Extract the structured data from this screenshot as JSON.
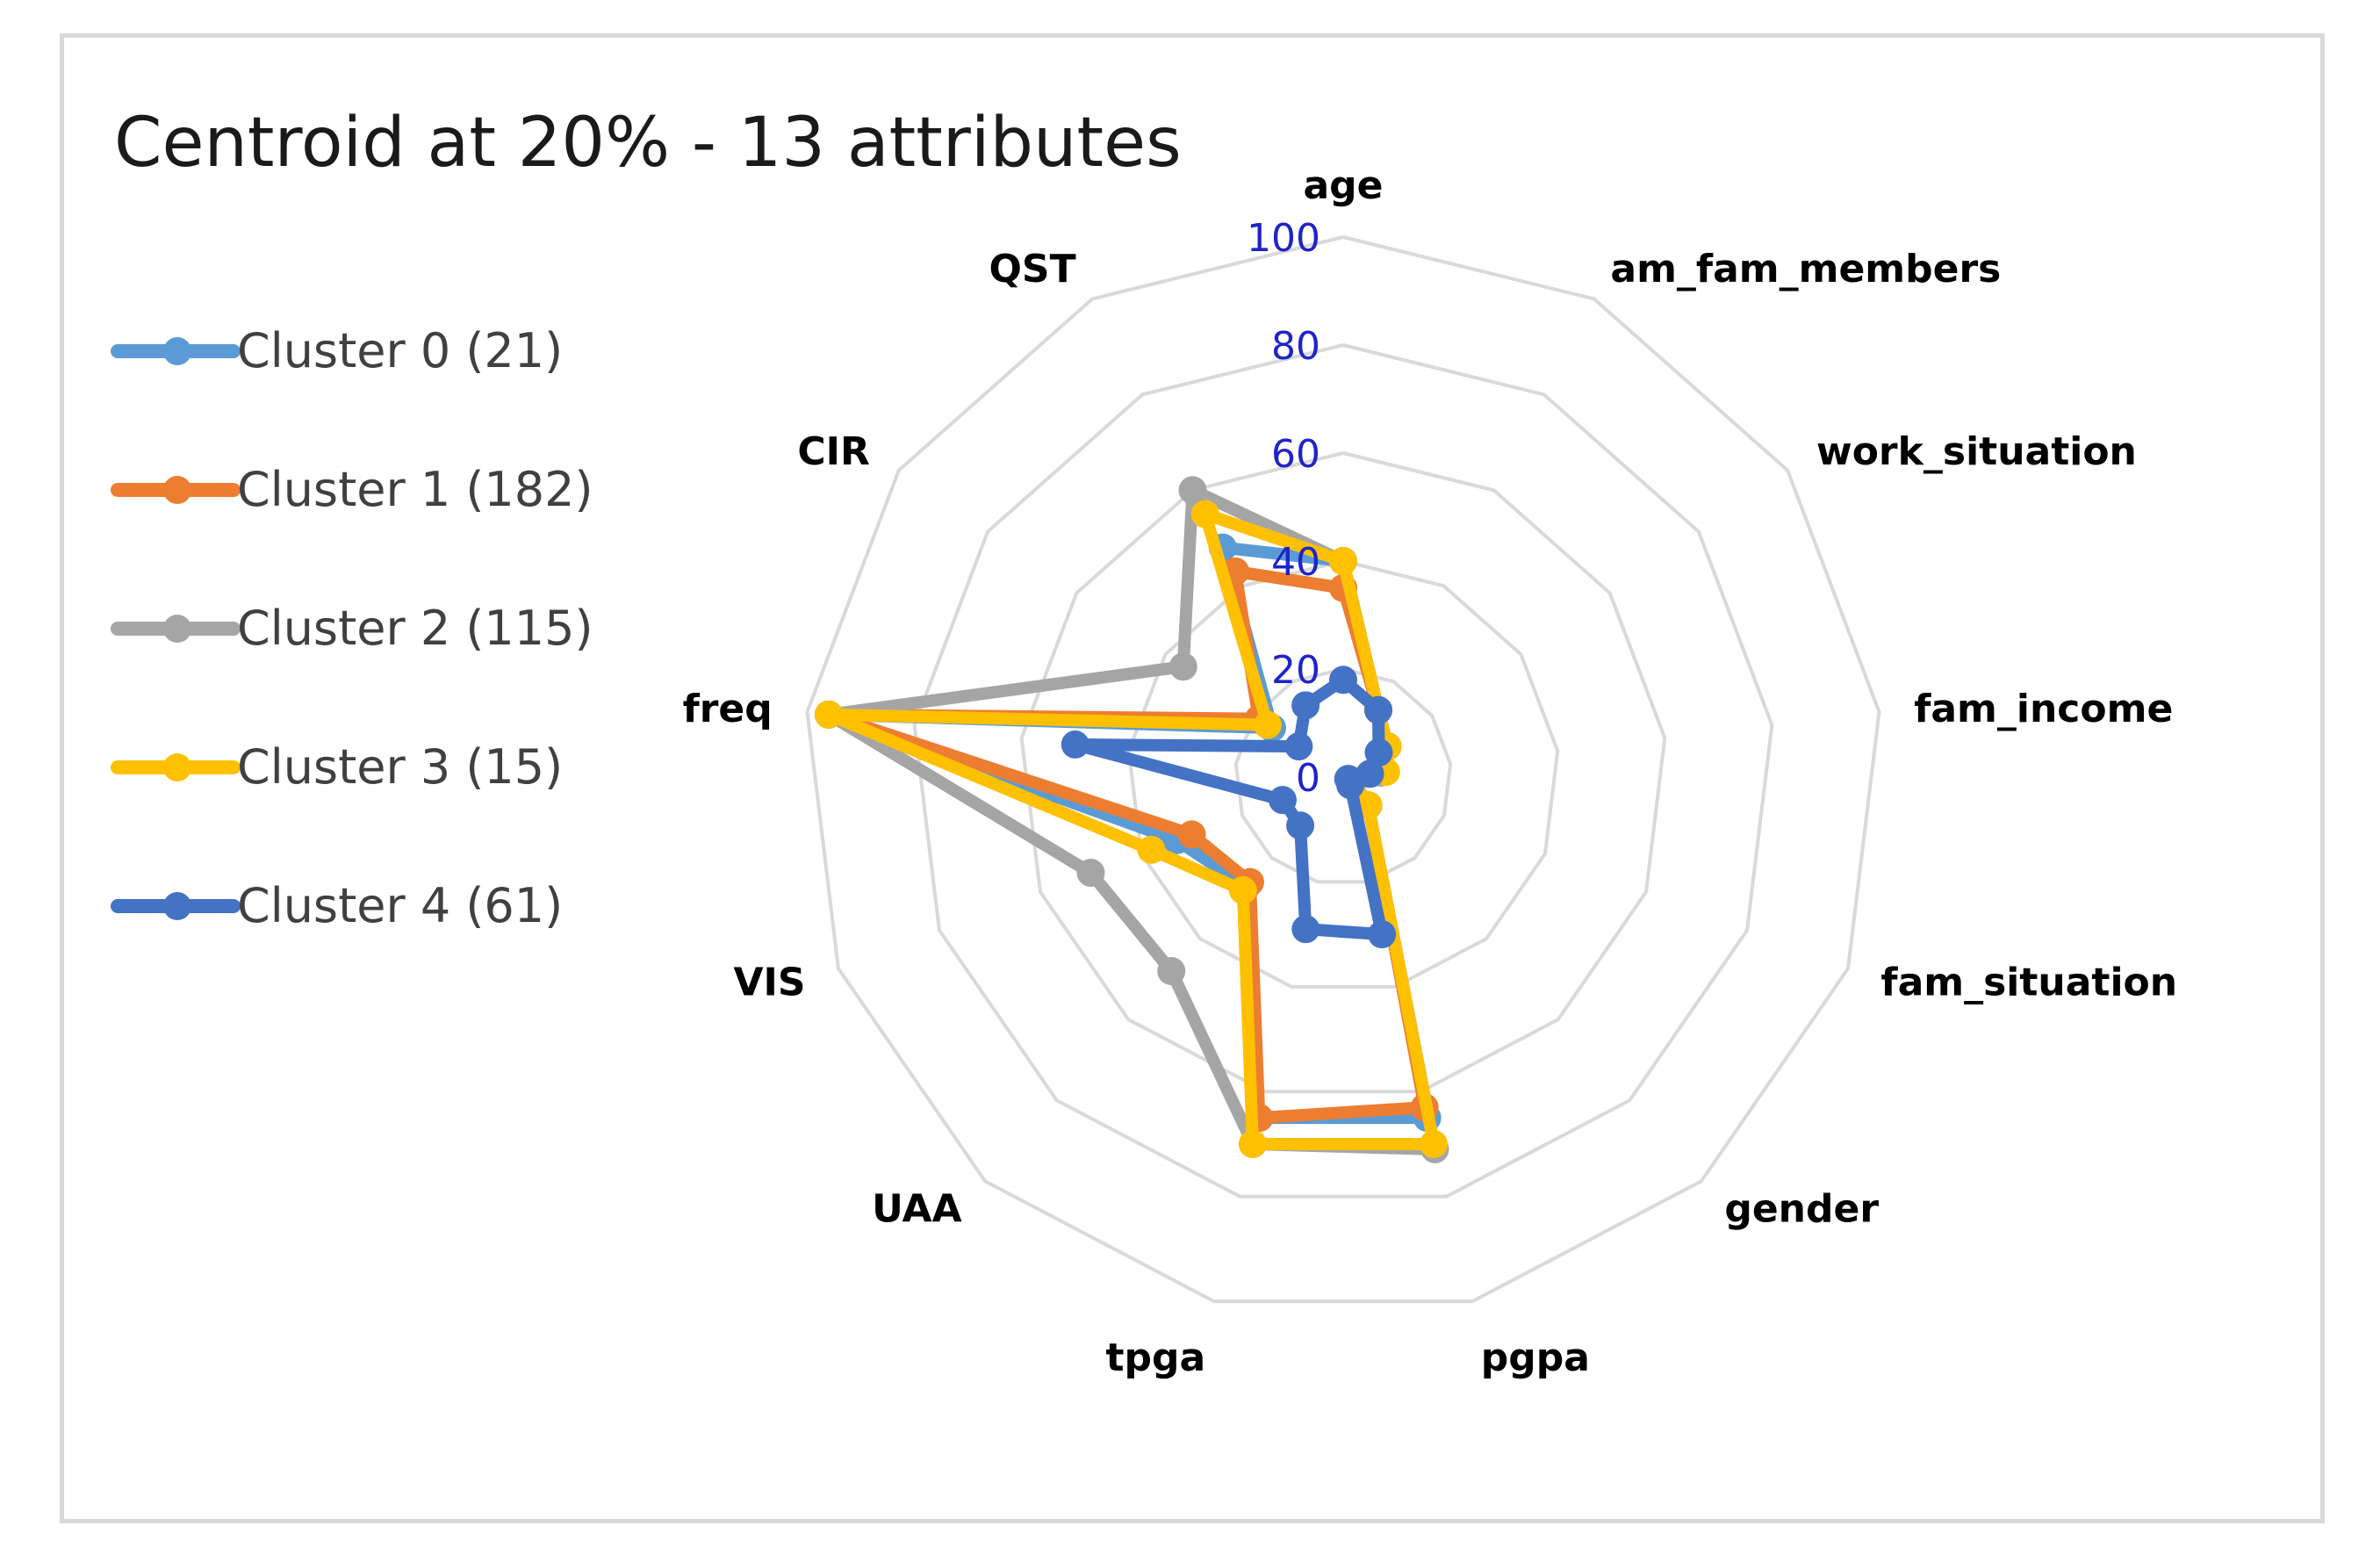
{
  "chart_data": {
    "type": "radar",
    "title": "Centroid at 20% - 13 attributes",
    "axes": [
      "age",
      "am_fam_members",
      "work_situation",
      "fam_income",
      "fam_situation",
      "gender",
      "pgpa",
      "tpga",
      "UAA",
      "VIS",
      "freq",
      "CIR",
      "QST"
    ],
    "rlim": [
      0,
      100
    ],
    "ticks": [
      0,
      20,
      40,
      60,
      80,
      100
    ],
    "series": [
      {
        "name": "Cluster 0 (21)",
        "color": "#5b9bd5",
        "values": [
          40,
          14,
          10,
          7,
          2,
          7,
          65,
          65,
          27,
          33,
          96,
          16,
          48
        ]
      },
      {
        "name": "Cluster 1 (182)",
        "color": "#ed7d31",
        "values": [
          35,
          14,
          10,
          7,
          2,
          7,
          63,
          65,
          26,
          30,
          96,
          19,
          43
        ]
      },
      {
        "name": "Cluster 2 (115)",
        "color": "#a5a5a5",
        "values": [
          40,
          14,
          10,
          7,
          2,
          7,
          71,
          70,
          48,
          50,
          96,
          36,
          60
        ]
      },
      {
        "name": "Cluster 3 (15)",
        "color": "#ffc000",
        "values": [
          40,
          14,
          10,
          8,
          2,
          7,
          70,
          70,
          28,
          38,
          96,
          17,
          55
        ]
      },
      {
        "name": "Cluster 4 (61)",
        "color": "#4472c4",
        "values": [
          18,
          14,
          8,
          5,
          1,
          2,
          30,
          29,
          12,
          12,
          50,
          10,
          15
        ]
      }
    ],
    "legend": "left"
  }
}
